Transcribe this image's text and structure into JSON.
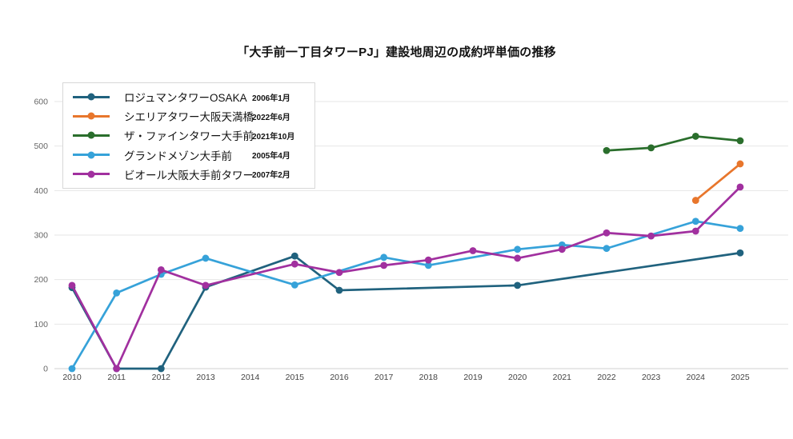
{
  "chart_data": {
    "type": "line",
    "title": "「大手前一丁目タワーPJ」建設地周辺の成約坪単価の推移",
    "xlabel": "",
    "ylabel": "",
    "xlim": [
      2010,
      2025
    ],
    "ylim": [
      0,
      600
    ],
    "x_ticks": [
      "2010",
      "2011",
      "2012",
      "2013",
      "2014",
      "2015",
      "2016",
      "2017",
      "2018",
      "2019",
      "2020",
      "2021",
      "2022",
      "2023",
      "2024",
      "2025"
    ],
    "y_ticks": [
      0,
      100,
      200,
      300,
      400,
      500,
      600
    ],
    "grid": "horizontal",
    "legend_position": "top-left",
    "series": [
      {
        "name": "ロジュマンタワーOSAKA",
        "built": "2006年1月",
        "color": "#20627e",
        "points": [
          [
            2010,
            182
          ],
          [
            2011,
            0
          ],
          [
            2012,
            0
          ],
          [
            2013,
            183
          ],
          [
            2015,
            253
          ],
          [
            2016,
            176
          ],
          [
            2020,
            187
          ],
          [
            2025,
            260
          ]
        ]
      },
      {
        "name": "シエリアタワー大阪天満橋",
        "built": "2022年6月",
        "color": "#e8762c",
        "points": [
          [
            2024,
            378
          ],
          [
            2025,
            460
          ]
        ]
      },
      {
        "name": "ザ・ファインタワー大手前",
        "built": "2021年10月",
        "color": "#2a6e2c",
        "points": [
          [
            2022,
            490
          ],
          [
            2023,
            496
          ],
          [
            2024,
            522
          ],
          [
            2025,
            512
          ]
        ]
      },
      {
        "name": "グランドメゾン大手前",
        "built": "2005年4月",
        "color": "#36a2d9",
        "points": [
          [
            2010,
            0
          ],
          [
            2011,
            170
          ],
          [
            2012,
            212
          ],
          [
            2013,
            248
          ],
          [
            2015,
            188
          ],
          [
            2017,
            250
          ],
          [
            2018,
            232
          ],
          [
            2020,
            268
          ],
          [
            2021,
            278
          ],
          [
            2022,
            270
          ],
          [
            2024,
            331
          ],
          [
            2025,
            315
          ]
        ]
      },
      {
        "name": "ビオール大阪大手前タワー",
        "built": "2007年2月",
        "color": "#a1309f",
        "points": [
          [
            2010,
            187
          ],
          [
            2011,
            0
          ],
          [
            2012,
            222
          ],
          [
            2013,
            187
          ],
          [
            2015,
            235
          ],
          [
            2016,
            216
          ],
          [
            2017,
            232
          ],
          [
            2018,
            244
          ],
          [
            2019,
            265
          ],
          [
            2020,
            248
          ],
          [
            2021,
            268
          ],
          [
            2022,
            305
          ],
          [
            2023,
            298
          ],
          [
            2024,
            309
          ],
          [
            2025,
            408
          ]
        ]
      }
    ],
    "axis_colors": {
      "x_tick": "#444444",
      "y_tick": "#666666",
      "gridline": "#e6e6e6",
      "zeroline": "#d2d2d2"
    }
  }
}
